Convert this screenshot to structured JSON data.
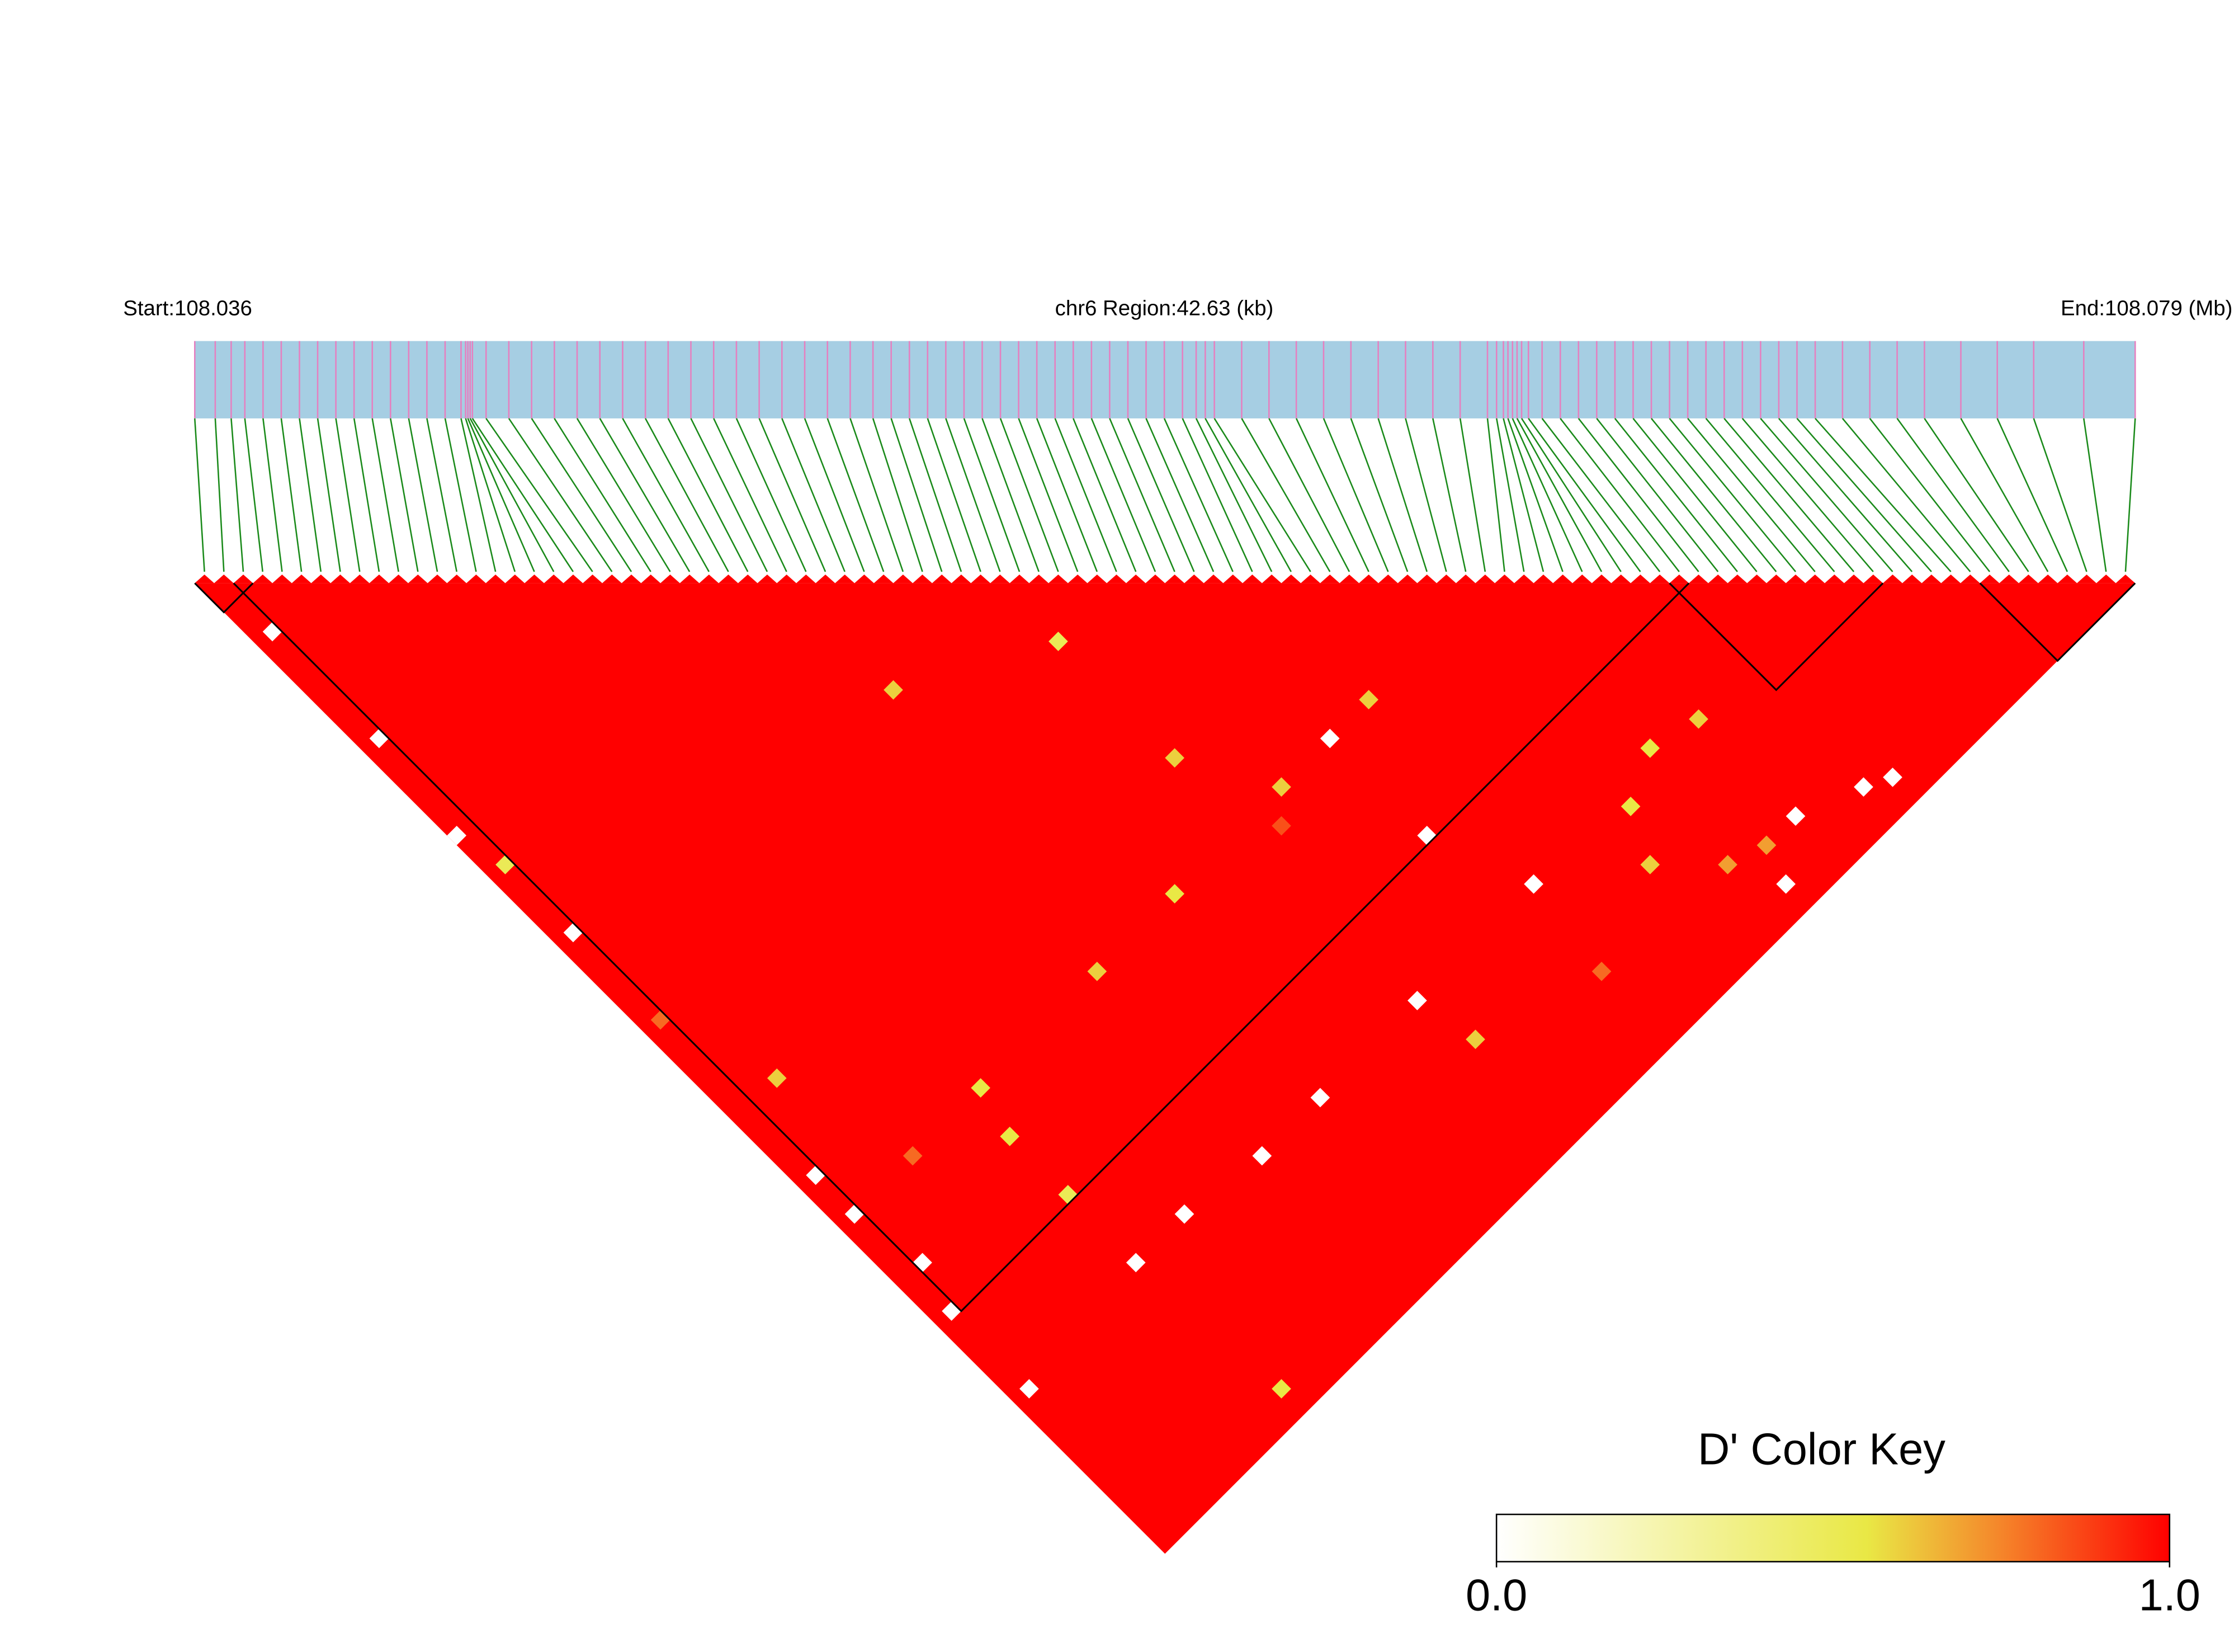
{
  "chart_data": {
    "type": "ld_heatmap",
    "start_label": "Start:108.036",
    "region_label": "chr6 Region:42.63 (kb)",
    "end_label": "End:108.079 (Mb)",
    "xlim": [
      0,
      42.63
    ],
    "positions": [
      0.0,
      0.45,
      0.8,
      1.1,
      1.5,
      1.9,
      2.3,
      2.7,
      3.1,
      3.5,
      3.9,
      4.3,
      4.7,
      5.1,
      5.5,
      5.85,
      5.95,
      6.0,
      6.05,
      6.1,
      6.4,
      6.9,
      7.4,
      7.9,
      8.4,
      8.9,
      9.4,
      9.9,
      10.4,
      10.9,
      11.4,
      11.9,
      12.4,
      12.9,
      13.4,
      13.9,
      14.4,
      14.9,
      15.3,
      15.7,
      16.1,
      16.5,
      16.9,
      17.3,
      17.7,
      18.1,
      18.5,
      18.9,
      19.3,
      19.7,
      20.1,
      20.5,
      20.9,
      21.3,
      21.7,
      22.0,
      22.2,
      22.4,
      23.0,
      23.6,
      24.2,
      24.8,
      25.4,
      26.0,
      26.6,
      27.2,
      27.8,
      28.4,
      28.6,
      28.75,
      28.85,
      28.95,
      29.05,
      29.15,
      29.3,
      29.6,
      30.0,
      30.4,
      30.8,
      31.2,
      31.6,
      32.0,
      32.4,
      32.8,
      33.2,
      33.6,
      34.0,
      34.4,
      34.8,
      35.2,
      35.6,
      36.2,
      36.8,
      37.4,
      38.0,
      38.8,
      39.6,
      40.4,
      41.5,
      42.63
    ],
    "d_prime_cells": [
      [
        1,
        66,
        0
      ],
      [
        2,
        72,
        0
      ],
      [
        1,
        76,
        0
      ],
      [
        1,
        62,
        0
      ],
      [
        14,
        66,
        0.55
      ],
      [
        26,
        66,
        0.6
      ],
      [
        30,
        41,
        0.6
      ],
      [
        41,
        47,
        0.5
      ],
      [
        50,
        66,
        0
      ],
      [
        54,
        66,
        0.6
      ],
      [
        66,
        83,
        0.55
      ],
      [
        70,
        84,
        0.6
      ],
      [
        66,
        97,
        0
      ],
      [
        75,
        96,
        0
      ],
      [
        60,
        89,
        0.6
      ],
      [
        64,
        93,
        0.7
      ],
      [
        50,
        76,
        0
      ],
      [
        41,
        84,
        0
      ],
      [
        25,
        84,
        0
      ],
      [
        31,
        84,
        0
      ],
      [
        18,
        83,
        0
      ],
      [
        13,
        83,
        0
      ],
      [
        1,
        84,
        0
      ],
      [
        14,
        97,
        0.55
      ],
      [
        42,
        89,
        0.6
      ],
      [
        13,
        70,
        0.55
      ],
      [
        13,
        76,
        0.5
      ],
      [
        34,
        66,
        0.55
      ],
      [
        45,
        66,
        0.6
      ],
      [
        41,
        59,
        0.6
      ],
      [
        0,
        26,
        0
      ],
      [
        1,
        17,
        0
      ],
      [
        1,
        6,
        0
      ],
      [
        1,
        37,
        0
      ],
      [
        4,
        55,
        0.6
      ],
      [
        1,
        30,
        0.5
      ],
      [
        62,
        85,
        0.55
      ],
      [
        70,
        94,
        0
      ],
      [
        77,
        97,
        0
      ],
      [
        53,
        84,
        0
      ],
      [
        67,
        94,
        0.7
      ],
      [
        7,
        66,
        0.8
      ],
      [
        43,
        68,
        0.85
      ],
      [
        52,
        92,
        0.8
      ],
      [
        1,
        46,
        0.8
      ]
    ],
    "blocks": [
      [
        0,
        2
      ],
      [
        2,
        76
      ],
      [
        76,
        86
      ],
      [
        92,
        99
      ]
    ],
    "bar_color": "#a6cee3",
    "snp_color": "#e580c0",
    "link_color": "#1a8a1a",
    "color_stops": [
      [
        0,
        "#ffffff"
      ],
      [
        0.55,
        "#e9e845"
      ],
      [
        0.75,
        "#f5852a"
      ],
      [
        1,
        "#ff0000"
      ]
    ],
    "color_key": {
      "title": "D' Color Key",
      "ticks": [
        {
          "value": 0,
          "label": "0.0"
        },
        {
          "value": 1,
          "label": "1.0"
        }
      ]
    }
  }
}
